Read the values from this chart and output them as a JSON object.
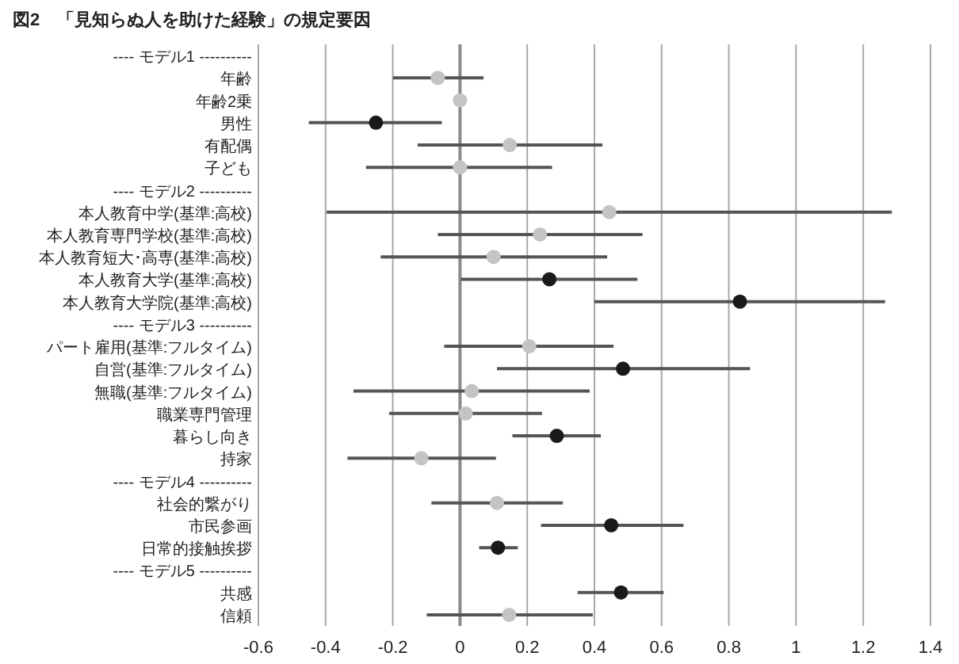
{
  "chart_data": {
    "type": "scatter",
    "orientation": "horizontal",
    "title": "図2　「見知らぬ人を助けた経験」の規定要因",
    "categories": [
      "---- モデル1 ----------",
      "年齢",
      "年齢2乗",
      "男性",
      "有配偶",
      "子ども",
      "---- モデル2 ----------",
      "本人教育中学(基準:高校)",
      "本人教育専門学校(基準:高校)",
      "本人教育短大･高専(基準:高校)",
      "本人教育大学(基準:高校)",
      "本人教育大学院(基準:高校)",
      "---- モデル3 ----------",
      "パート雇用(基準:フルタイム)",
      "自営(基準:フルタイム)",
      "無職(基準:フルタイム)",
      "職業専門管理",
      "暮らし向き",
      "持家",
      "---- モデル4 ----------",
      "社会的繋がり",
      "市民参画",
      "日常的接触挨拶",
      "---- モデル5 ----------",
      "共感",
      "信頼"
    ],
    "series": [
      {
        "color": "#c4c4c4",
        "values": [
          null,
          -0.066,
          0,
          null,
          0.148,
          0,
          null,
          0.444,
          0.238,
          0.1,
          null,
          null,
          null,
          0.206,
          null,
          0.035,
          0.017,
          null,
          -0.115,
          null,
          0.11,
          null,
          null,
          null,
          null,
          0.146
        ],
        "errors": [
          null,
          [
            -0.2,
            0.07
          ],
          null,
          null,
          [
            -0.126,
            0.424
          ],
          [
            -0.28,
            0.274
          ],
          null,
          [
            -0.397,
            1.285
          ],
          [
            -0.066,
            0.543
          ],
          [
            -0.236,
            0.438
          ],
          null,
          null,
          null,
          [
            -0.047,
            0.457
          ],
          null,
          [
            -0.317,
            0.386
          ],
          [
            -0.211,
            0.244
          ],
          null,
          [
            -0.335,
            0.107
          ],
          null,
          [
            -0.085,
            0.306
          ],
          null,
          null,
          null,
          null,
          [
            -0.099,
            0.395
          ]
        ]
      },
      {
        "color": "#1a1a1a",
        "values": [
          null,
          null,
          null,
          -0.25,
          null,
          null,
          null,
          null,
          null,
          null,
          0.266,
          0.833,
          null,
          null,
          0.485,
          null,
          null,
          0.288,
          null,
          null,
          null,
          0.45,
          0.113,
          null,
          0.479,
          null
        ],
        "errors": [
          null,
          null,
          null,
          [
            -0.45,
            -0.054
          ],
          null,
          null,
          null,
          null,
          null,
          null,
          [
            0.003,
            0.528
          ],
          [
            0.4,
            1.265
          ],
          null,
          null,
          [
            0.11,
            0.863
          ],
          null,
          null,
          [
            0.156,
            0.419
          ],
          null,
          null,
          null,
          [
            0.241,
            0.665
          ],
          [
            0.057,
            0.172
          ],
          null,
          [
            0.35,
            0.606
          ],
          null
        ]
      }
    ],
    "xlim": [
      -0.6,
      1.4
    ],
    "xticks": [
      -0.6,
      -0.4,
      -0.2,
      0,
      0.2,
      0.4,
      0.6,
      0.8,
      1,
      1.2,
      1.4
    ],
    "grid": "x",
    "marker": "circle"
  }
}
